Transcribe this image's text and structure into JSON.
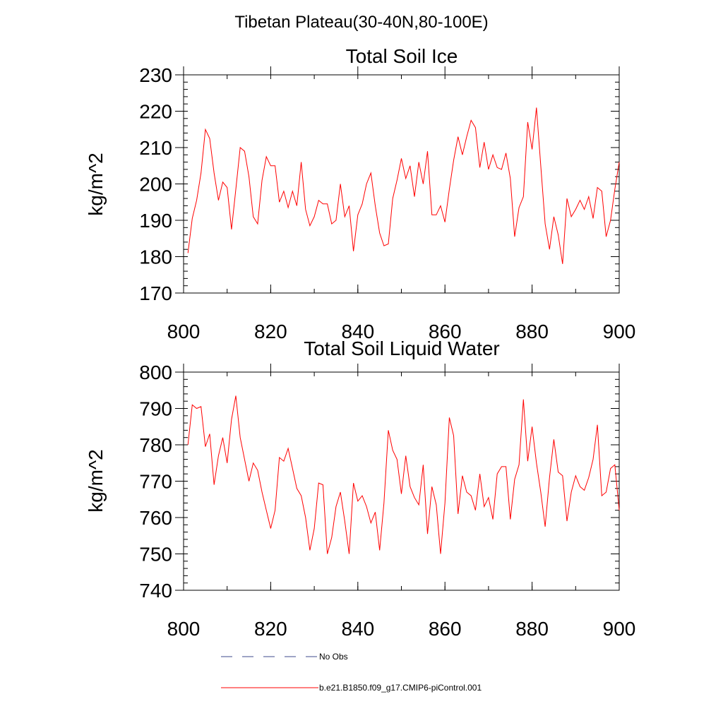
{
  "figure": {
    "main_title": "Tibetan Plateau(30-40N,80-100E)"
  },
  "legend": {
    "entries": [
      {
        "label": "No Obs",
        "color": "#3c4a8c",
        "style": "dashed"
      },
      {
        "label": "b.e21.B1850.f09_g17.CMIP6-piControl.001",
        "color": "#ff0000",
        "style": "solid"
      }
    ]
  },
  "chart_data": [
    {
      "type": "line",
      "title": "Total Soil Ice",
      "xlabel": "",
      "ylabel": "kg/m^2",
      "xlim": [
        800,
        900
      ],
      "ylim": [
        170,
        230
      ],
      "x_ticks": [
        800,
        820,
        840,
        860,
        880,
        900
      ],
      "y_ticks": [
        170,
        180,
        190,
        200,
        210,
        220,
        230
      ],
      "x_minor_step": 10,
      "y_minor_step": 2,
      "grid": false,
      "series": [
        {
          "color": "#ff0000",
          "x": [
            801,
            802,
            803,
            804,
            805,
            806,
            807,
            808,
            809,
            810,
            811,
            812,
            813,
            814,
            815,
            816,
            817,
            818,
            819,
            820,
            821,
            822,
            823,
            824,
            825,
            826,
            827,
            828,
            829,
            830,
            831,
            832,
            833,
            834,
            835,
            836,
            837,
            838,
            839,
            840,
            841,
            842,
            843,
            844,
            845,
            846,
            847,
            848,
            849,
            850,
            851,
            852,
            853,
            854,
            855,
            856,
            857,
            858,
            859,
            860,
            861,
            862,
            863,
            864,
            865,
            866,
            867,
            868,
            869,
            870,
            871,
            872,
            873,
            874,
            875,
            876,
            877,
            878,
            879,
            880,
            881,
            882,
            883,
            884,
            885,
            886,
            887,
            888,
            889,
            890,
            891,
            892,
            893,
            894,
            895,
            896,
            897,
            898,
            899,
            900
          ],
          "values": [
            181,
            190.5,
            195.5,
            203,
            215,
            212.5,
            203,
            195.5,
            200.5,
            199,
            187.5,
            198.5,
            210,
            209,
            202,
            191,
            189,
            201,
            207.5,
            205,
            205,
            195,
            198,
            193.5,
            198,
            194,
            206,
            193,
            188.5,
            191,
            195.5,
            194.5,
            194.5,
            189,
            190,
            200,
            191,
            194,
            181.5,
            191.5,
            194.5,
            200,
            203,
            194,
            186.5,
            183,
            183.5,
            196,
            201,
            207,
            201.5,
            205,
            196.5,
            206,
            200,
            209,
            191.5,
            191.5,
            194,
            189.5,
            198.5,
            206.5,
            213,
            208,
            213,
            217.5,
            215.5,
            204.5,
            211.5,
            204,
            208,
            204.5,
            204,
            208.5,
            201.5,
            185.5,
            193.5,
            196.5,
            217,
            209.5,
            221,
            205,
            189,
            182,
            191,
            186,
            178,
            196,
            191,
            193,
            195.5,
            193,
            196.5,
            190.5,
            199,
            198,
            185.5,
            190,
            198.5,
            206
          ]
        }
      ]
    },
    {
      "type": "line",
      "title": "Total Soil Liquid Water",
      "xlabel": "",
      "ylabel": "kg/m^2",
      "xlim": [
        800,
        900
      ],
      "ylim": [
        740,
        800
      ],
      "x_ticks": [
        800,
        820,
        840,
        860,
        880,
        900
      ],
      "y_ticks": [
        740,
        750,
        760,
        770,
        780,
        790,
        800
      ],
      "x_minor_step": 10,
      "y_minor_step": 2,
      "grid": false,
      "series": [
        {
          "color": "#ff0000",
          "x": [
            801,
            802,
            803,
            804,
            805,
            806,
            807,
            808,
            809,
            810,
            811,
            812,
            813,
            814,
            815,
            816,
            817,
            818,
            819,
            820,
            821,
            822,
            823,
            824,
            825,
            826,
            827,
            828,
            829,
            830,
            831,
            832,
            833,
            834,
            835,
            836,
            837,
            838,
            839,
            840,
            841,
            842,
            843,
            844,
            845,
            846,
            847,
            848,
            849,
            850,
            851,
            852,
            853,
            854,
            855,
            856,
            857,
            858,
            859,
            860,
            861,
            862,
            863,
            864,
            865,
            866,
            867,
            868,
            869,
            870,
            871,
            872,
            873,
            874,
            875,
            876,
            877,
            878,
            879,
            880,
            881,
            882,
            883,
            884,
            885,
            886,
            887,
            888,
            889,
            890,
            891,
            892,
            893,
            894,
            895,
            896,
            897,
            898,
            899,
            900
          ],
          "values": [
            780,
            791,
            790,
            790.5,
            779.5,
            783,
            769,
            777,
            782,
            775,
            787,
            793.5,
            782,
            776,
            770,
            775,
            773,
            767,
            762,
            757,
            762,
            776.5,
            775.5,
            779,
            773.5,
            768,
            766,
            760,
            751,
            757,
            769.5,
            769,
            750,
            754.5,
            763,
            767,
            759,
            750,
            769.5,
            764.5,
            766,
            763,
            758.5,
            761.5,
            751,
            764,
            784,
            778.5,
            776,
            766.5,
            777,
            768.5,
            765.5,
            763.5,
            774.5,
            755.5,
            768.5,
            763.5,
            750,
            764,
            787.5,
            782.5,
            761,
            771.5,
            767,
            766,
            762,
            772,
            763,
            765.5,
            759.5,
            772,
            774,
            774,
            759.5,
            770.5,
            774.5,
            792.5,
            775.5,
            785,
            775,
            767,
            757.5,
            771,
            781.5,
            772.5,
            771.5,
            759,
            767,
            771.5,
            768.5,
            767.5,
            771,
            776,
            785.5,
            766,
            767,
            773.5,
            774.5,
            762
          ]
        }
      ]
    }
  ]
}
